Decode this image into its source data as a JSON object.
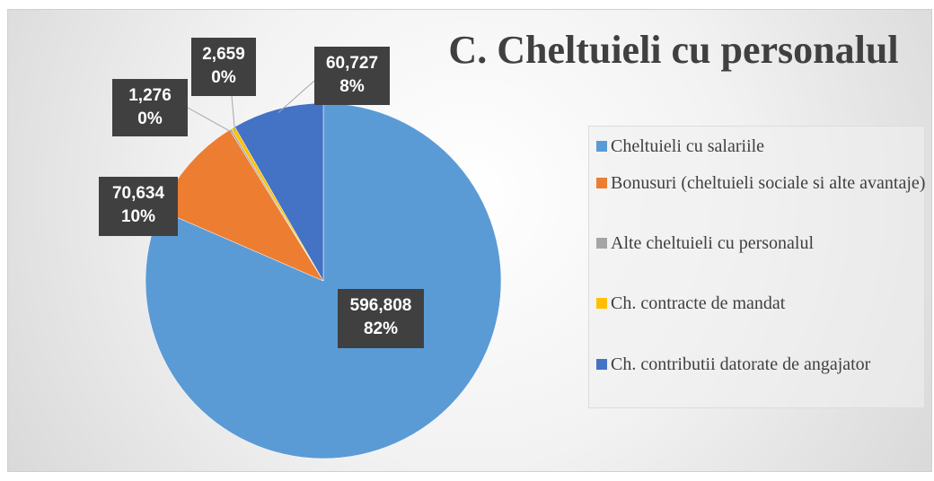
{
  "chart_data": {
    "type": "pie",
    "title": "C. Cheltuieli cu personalul",
    "categories": [
      "Cheltuieli cu salariile",
      "Bonusuri (cheltuieli sociale si alte avantaje)",
      "Alte cheltuieli cu personalul",
      "Ch. contracte de mandat",
      "Ch. contributii datorate de angajator"
    ],
    "values": [
      596808,
      70634,
      1276,
      2659,
      60727
    ],
    "value_labels": [
      "596,808",
      "70,634",
      "1,276",
      "2,659",
      "60,727"
    ],
    "percent_labels": [
      "82%",
      "10%",
      "0%",
      "0%",
      "8%"
    ],
    "colors": [
      "#5b9bd5",
      "#ed7d31",
      "#a5a5a5",
      "#ffc000",
      "#4472c4"
    ],
    "legend": "right"
  }
}
